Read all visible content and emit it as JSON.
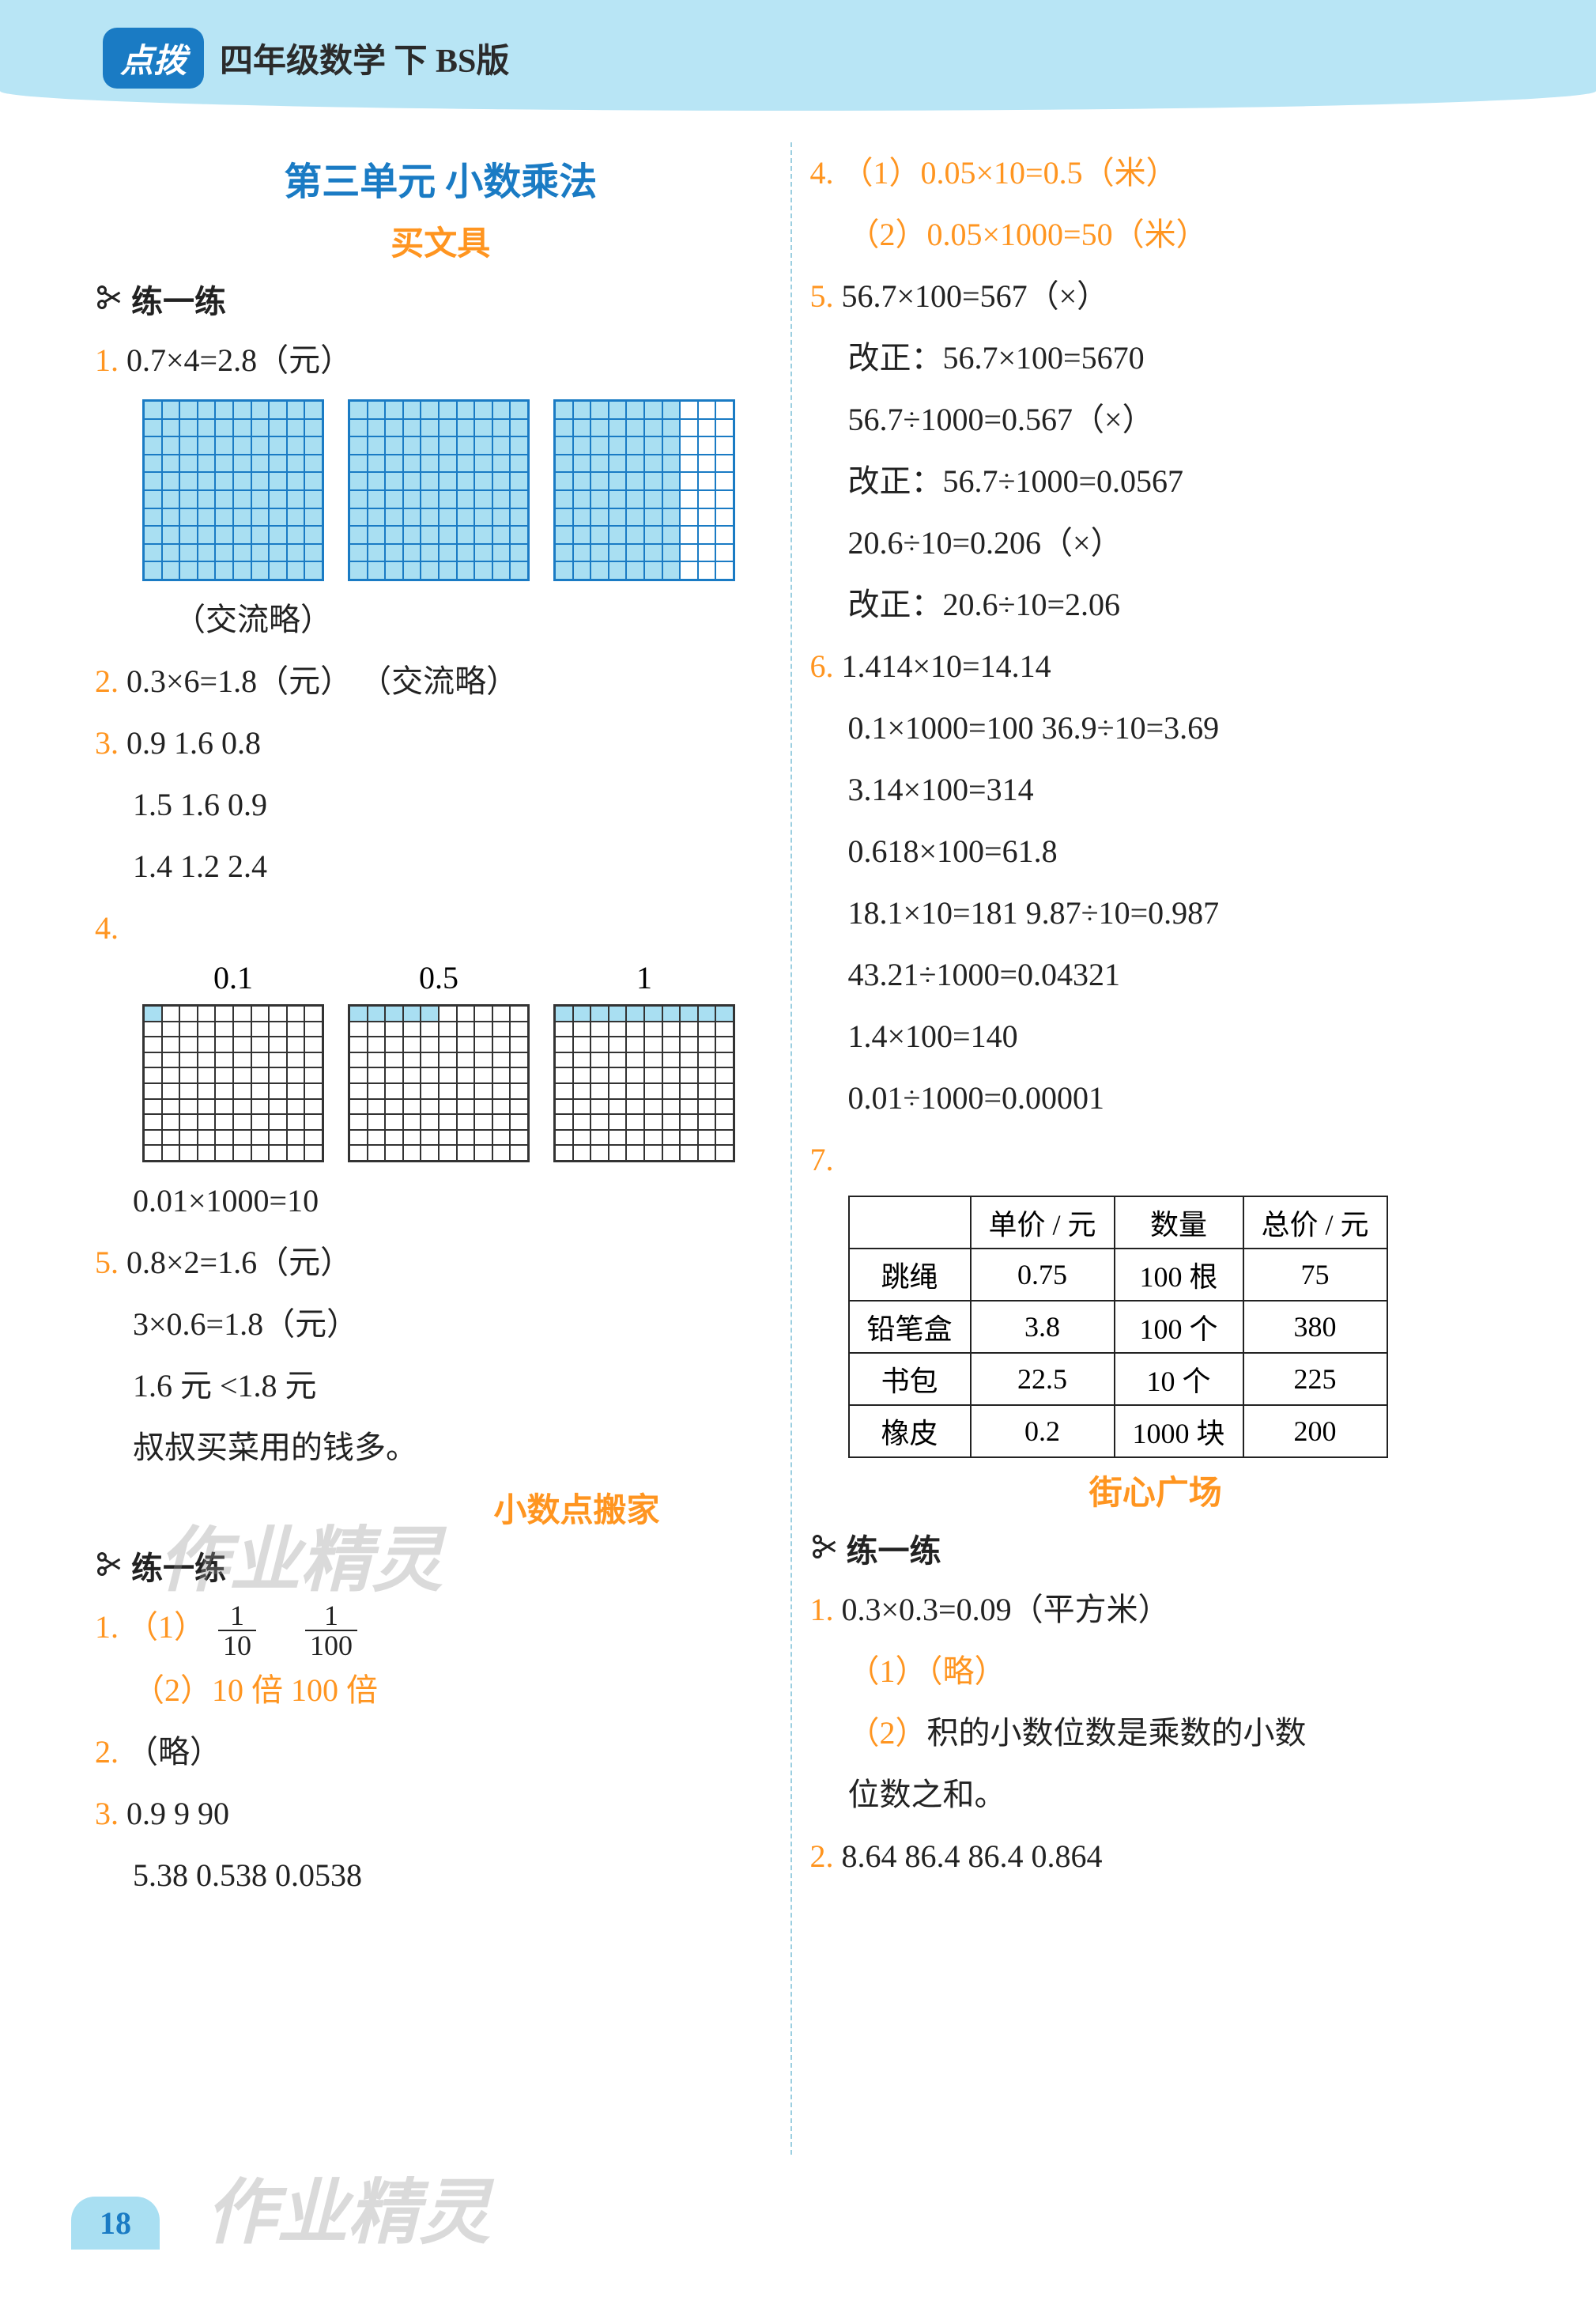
{
  "header": {
    "logo": "点拨",
    "title": "四年级数学 下 BS版"
  },
  "pageNumber": "18",
  "col1": {
    "sectionTitle": "第三单元  小数乘法",
    "sub1": "买文具",
    "practiceLabel": "练一练",
    "q1": {
      "num": "1.",
      "expr": "0.7×4=2.8（元）",
      "note": "（交流略）"
    },
    "q2": {
      "num": "2.",
      "expr": "0.3×6=1.8（元）   （交流略）"
    },
    "q3": {
      "num": "3.",
      "r1": "0.9   1.6    0.8",
      "r2": "1.5   1.6    0.9",
      "r3": "1.4   1.2    2.4"
    },
    "q4": {
      "num": "4.",
      "labels": [
        "0.1",
        "0.5",
        "1"
      ],
      "bottom": "0.01×1000=10"
    },
    "q5": {
      "num": "5.",
      "l1": "0.8×2=1.6（元）",
      "l2": "3×0.6=1.8（元）",
      "l3": "1.6 元 <1.8 元",
      "l4": "叔叔买菜用的钱多。"
    },
    "sub2": "小数点搬家",
    "practiceLabel2": "练一练",
    "b1": {
      "num": "1.",
      "p1a": "（1）",
      "p1_f1_num": "1",
      "p1_f1_den": "10",
      "p1_f2_num": "1",
      "p1_f2_den": "100",
      "p2": "（2）10 倍   100 倍"
    },
    "b2": {
      "num": "2.",
      "txt": "（略）"
    },
    "b3": {
      "num": "3.",
      "l1": "0.9     9       90",
      "l2": "5.38   0.538   0.0538"
    }
  },
  "col2": {
    "q4": {
      "num": "4.",
      "p1": "（1）0.05×10=0.5（米）",
      "p2": "（2）0.05×1000=50（米）"
    },
    "q5": {
      "num": "5.",
      "l1": "56.7×100=567（×）",
      "l2": "改正：56.7×100=5670",
      "l3": "56.7÷1000=0.567（×）",
      "l4": "改正：56.7÷1000=0.0567",
      "l5": "20.6÷10=0.206（×）",
      "l6": "改正：20.6÷10=2.06"
    },
    "q6": {
      "num": "6.",
      "l1": "1.414×10=14.14",
      "l2": "0.1×1000=100   36.9÷10=3.69",
      "l3": "3.14×100=314",
      "l4": "0.618×100=61.8",
      "l5": "18.1×10=181   9.87÷10=0.987",
      "l6": "43.21÷1000=0.04321",
      "l7": "1.4×100=140",
      "l8": "0.01÷1000=0.00001"
    },
    "q7": {
      "num": "7.",
      "headers": [
        "",
        "单价 / 元",
        "数量",
        "总价 / 元"
      ],
      "rows": [
        [
          "跳绳",
          "0.75",
          "100 根",
          "75"
        ],
        [
          "铅笔盒",
          "3.8",
          "100 个",
          "380"
        ],
        [
          "书包",
          "22.5",
          "10 个",
          "225"
        ],
        [
          "橡皮",
          "0.2",
          "1000 块",
          "200"
        ]
      ]
    },
    "sub3": "街心广场",
    "practiceLabel3": "练一练",
    "c1": {
      "num": "1.",
      "l1": "0.3×0.3=0.09（平方米）",
      "p1": "（1）（略）",
      "p2a": "（2）",
      "p2b": "积的小数位数是乘数的小数",
      "p2c": "位数之和。"
    },
    "c2": {
      "num": "2.",
      "txt": "8.64   86.4   86.4   0.864"
    }
  },
  "watermarks": {
    "w1": "作业精灵",
    "w2": "作业精灵"
  },
  "colors": {
    "headerBg": "#b8e5f5",
    "accent": "#1a7bc4",
    "qnum": "#ff9520",
    "gridFill": "#a9dff2"
  }
}
